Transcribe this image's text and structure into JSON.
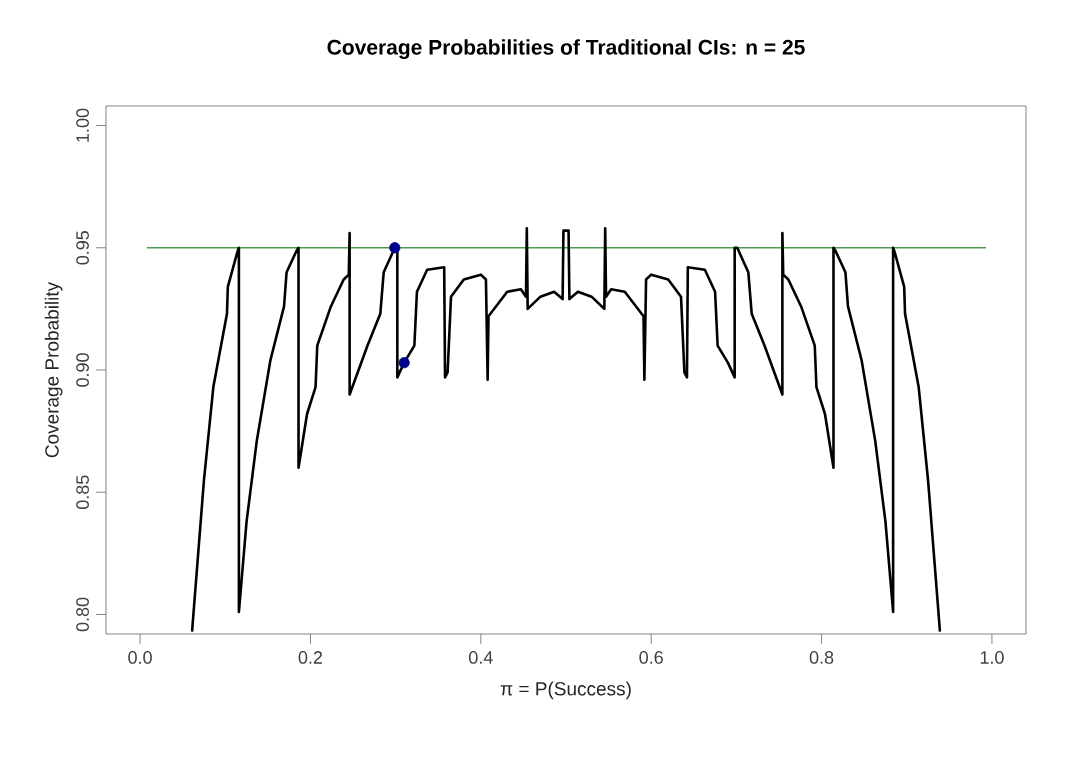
{
  "chart_data": {
    "type": "line",
    "title": "Coverage Probabilities of Traditional CIs: n = 25",
    "xlabel": "π = P(Success)",
    "ylabel": "Coverage Probability",
    "xlim": [
      -0.04,
      1.04
    ],
    "ylim": [
      0.792,
      1.008
    ],
    "xticks": [
      {
        "value": 0,
        "label": "0.0"
      },
      0.2,
      0.4,
      0.6,
      0.8,
      {
        "value": 1,
        "label": "1.0"
      }
    ],
    "yticks": [
      {
        "value": 0.8,
        "label": "0.80"
      },
      0.85,
      {
        "value": 0.9,
        "label": "0.90"
      },
      0.95,
      {
        "value": 1,
        "label": "1.00"
      }
    ],
    "grid": false,
    "series": [
      {
        "color": "#4c9a4c",
        "x": [
          0.008,
          0.993
        ],
        "values": [
          0.95,
          0.95
        ]
      },
      {
        "color": "#000000",
        "x": [
          0.061,
          0.075,
          0.086,
          0.102,
          0.103,
          0.114,
          0.116,
          0.116,
          0.125,
          0.137,
          0.153,
          0.169,
          0.172,
          0.184,
          0.186,
          0.186,
          0.196,
          0.206,
          0.208,
          0.224,
          0.239,
          0.245,
          0.246,
          0.246,
          0.267,
          0.282,
          0.286,
          0.299,
          0.302,
          0.302,
          0.31,
          0.322,
          0.325,
          0.337,
          0.357,
          0.358,
          0.361,
          0.365,
          0.38,
          0.4,
          0.406,
          0.408,
          0.409,
          0.431,
          0.447,
          0.453,
          0.454,
          0.455,
          0.47,
          0.486,
          0.496,
          0.497,
          0.503,
          0.504,
          0.514,
          0.53,
          0.545,
          0.546,
          0.547,
          0.553,
          0.569,
          0.591,
          0.592,
          0.594,
          0.6,
          0.62,
          0.635,
          0.639,
          0.642,
          0.643,
          0.663,
          0.675,
          0.678,
          0.69,
          0.698,
          0.698,
          0.701,
          0.714,
          0.718,
          0.733,
          0.754,
          0.754,
          0.755,
          0.761,
          0.776,
          0.792,
          0.794,
          0.804,
          0.814,
          0.814,
          0.816,
          0.828,
          0.831,
          0.847,
          0.863,
          0.875,
          0.884,
          0.884,
          0.886,
          0.897,
          0.898,
          0.914,
          0.925,
          0.939
        ],
        "values": [
          0.793,
          0.855,
          0.893,
          0.923,
          0.934,
          0.948,
          0.95,
          0.801,
          0.838,
          0.871,
          0.904,
          0.926,
          0.94,
          0.949,
          0.95,
          0.86,
          0.882,
          0.893,
          0.91,
          0.926,
          0.937,
          0.939,
          0.956,
          0.89,
          0.91,
          0.923,
          0.94,
          0.95,
          0.95,
          0.897,
          0.903,
          0.91,
          0.932,
          0.941,
          0.942,
          0.897,
          0.899,
          0.93,
          0.937,
          0.939,
          0.937,
          0.896,
          0.922,
          0.932,
          0.933,
          0.93,
          0.958,
          0.925,
          0.93,
          0.932,
          0.929,
          0.957,
          0.957,
          0.929,
          0.932,
          0.93,
          0.925,
          0.958,
          0.93,
          0.933,
          0.932,
          0.922,
          0.896,
          0.937,
          0.939,
          0.937,
          0.93,
          0.899,
          0.897,
          0.942,
          0.941,
          0.932,
          0.91,
          0.903,
          0.897,
          0.95,
          0.95,
          0.94,
          0.923,
          0.91,
          0.89,
          0.956,
          0.939,
          0.937,
          0.926,
          0.91,
          0.893,
          0.882,
          0.86,
          0.95,
          0.949,
          0.94,
          0.926,
          0.904,
          0.871,
          0.838,
          0.801,
          0.95,
          0.948,
          0.934,
          0.923,
          0.893,
          0.855,
          0.793
        ]
      },
      {
        "type": "scatter",
        "color": "#00008b",
        "x": [
          0.299,
          0.31
        ],
        "values": [
          0.95,
          0.903
        ]
      }
    ]
  }
}
